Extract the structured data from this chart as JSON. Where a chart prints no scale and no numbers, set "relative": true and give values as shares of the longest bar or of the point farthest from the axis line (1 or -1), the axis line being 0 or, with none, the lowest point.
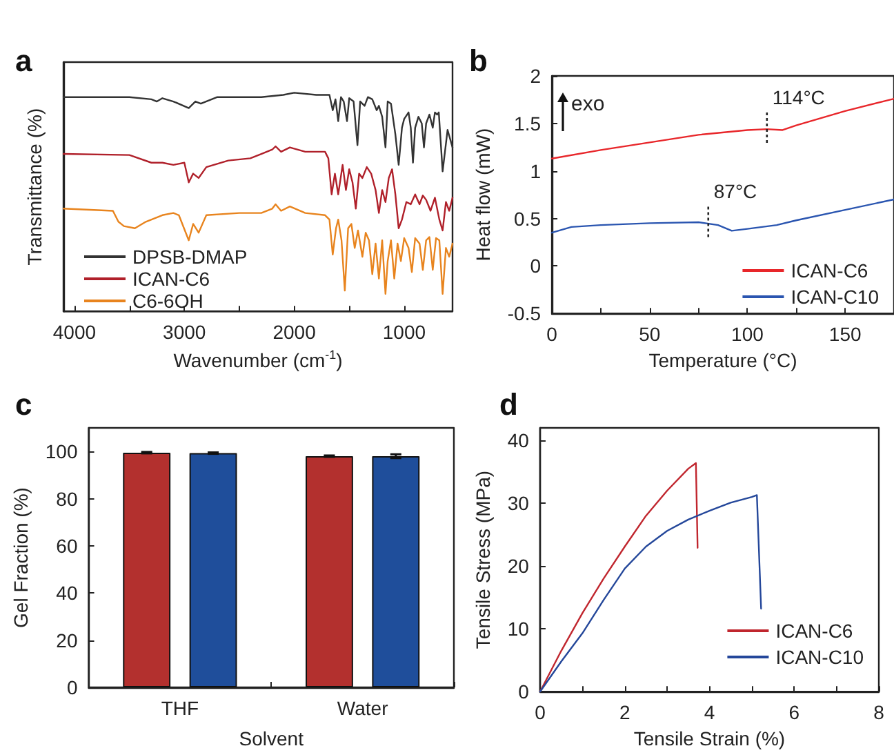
{
  "chart_data": [
    {
      "type": "line",
      "title": "a",
      "xlabel": "Wavenumber (cm$^{-1}$)",
      "ylabel": "Transmittance (%)",
      "relative": true,
      "tick_labels": "x",
      "xlim": [
        4100,
        560
      ],
      "xticks": [
        4000,
        {
          "value": 3500,
          "label": null
        },
        3000,
        {
          "value": 2500,
          "label": null
        },
        2000,
        {
          "value": 1500,
          "label": null
        },
        1000
      ],
      "legend": "bottom left",
      "series": [
        {
          "name": "DPSB-DMAP",
          "color": "#333333",
          "x": [
            4100,
            3500,
            3300,
            3250,
            3200,
            3100,
            2960,
            2900,
            2850,
            2700,
            2300,
            2100,
            2000,
            1800,
            1680,
            1650,
            1625,
            1600,
            1575,
            1550,
            1520,
            1500,
            1460,
            1425,
            1400,
            1360,
            1330,
            1290,
            1250,
            1230,
            1200,
            1170,
            1150,
            1120,
            1100,
            1080,
            1050,
            1020,
            1000,
            960,
            940,
            920,
            900,
            870,
            840,
            820,
            800,
            770,
            740,
            720,
            700,
            685,
            650,
            605,
            560
          ],
          "values": [
            0.98,
            0.98,
            0.97,
            0.96,
            0.975,
            0.96,
            0.93,
            0.96,
            0.95,
            0.98,
            0.98,
            0.99,
            1.0,
            0.99,
            0.99,
            0.92,
            0.97,
            0.87,
            0.98,
            0.96,
            0.87,
            0.975,
            0.96,
            0.76,
            0.96,
            0.94,
            0.98,
            0.97,
            0.92,
            0.94,
            0.89,
            0.75,
            0.96,
            0.95,
            0.88,
            0.81,
            0.67,
            0.84,
            0.88,
            0.91,
            0.84,
            0.68,
            0.84,
            0.89,
            0.86,
            0.75,
            0.86,
            0.9,
            0.84,
            0.91,
            0.9,
            0.91,
            0.64,
            0.83,
            0.75
          ]
        },
        {
          "name": "ICAN-C6",
          "color": "#b0202a",
          "x": [
            4100,
            3500,
            3300,
            3200,
            3100,
            3000,
            2960,
            2920,
            2870,
            2800,
            2600,
            2400,
            2300,
            2200,
            2170,
            2120,
            2040,
            1900,
            1720,
            1690,
            1660,
            1630,
            1600,
            1560,
            1530,
            1500,
            1470,
            1440,
            1410,
            1380,
            1340,
            1300,
            1260,
            1230,
            1200,
            1170,
            1140,
            1110,
            1080,
            1050,
            1020,
            980,
            940,
            900,
            860,
            830,
            800,
            760,
            720,
            680,
            650,
            620,
            590,
            560
          ],
          "values": [
            0.72,
            0.715,
            0.68,
            0.68,
            0.67,
            0.68,
            0.59,
            0.63,
            0.61,
            0.66,
            0.69,
            0.7,
            0.72,
            0.74,
            0.755,
            0.73,
            0.75,
            0.73,
            0.73,
            0.7,
            0.535,
            0.63,
            0.535,
            0.67,
            0.555,
            0.65,
            0.59,
            0.47,
            0.63,
            0.61,
            0.66,
            0.63,
            0.555,
            0.45,
            0.555,
            0.5,
            0.61,
            0.65,
            0.535,
            0.38,
            0.42,
            0.5,
            0.49,
            0.535,
            0.49,
            0.53,
            0.51,
            0.46,
            0.52,
            0.42,
            0.37,
            0.5,
            0.46,
            0.52
          ]
        },
        {
          "name": "C6-6OH",
          "color": "#e8841e",
          "x": [
            4100,
            3650,
            3600,
            3550,
            3450,
            3350,
            3200,
            3100,
            3050,
            2960,
            2920,
            2870,
            2800,
            2500,
            2300,
            2200,
            2170,
            2120,
            2040,
            1900,
            1720,
            1680,
            1650,
            1620,
            1600,
            1570,
            1540,
            1510,
            1480,
            1450,
            1420,
            1380,
            1350,
            1320,
            1290,
            1260,
            1230,
            1200,
            1170,
            1150,
            1120,
            1090,
            1060,
            1030,
            1000,
            960,
            930,
            900,
            860,
            830,
            800,
            770,
            740,
            710,
            680,
            650,
            620,
            590,
            560
          ],
          "values": [
            0.47,
            0.46,
            0.41,
            0.39,
            0.38,
            0.41,
            0.44,
            0.45,
            0.44,
            0.325,
            0.4,
            0.36,
            0.44,
            0.45,
            0.45,
            0.47,
            0.49,
            0.46,
            0.48,
            0.45,
            0.44,
            0.42,
            0.26,
            0.38,
            0.42,
            0.325,
            0.095,
            0.38,
            0.4,
            0.29,
            0.37,
            0.25,
            0.36,
            0.325,
            0.17,
            0.31,
            0.15,
            0.325,
            0.08,
            0.23,
            0.325,
            0.15,
            0.31,
            0.23,
            0.335,
            0.29,
            0.18,
            0.335,
            0.31,
            0.19,
            0.325,
            0.34,
            0.19,
            0.335,
            0.325,
            0.08,
            0.29,
            0.25,
            0.31
          ]
        }
      ]
    },
    {
      "type": "line",
      "title": "b",
      "xlabel": "Temperature (°C)",
      "ylabel": "Heat flow (mW)",
      "xlim": [
        0,
        175
      ],
      "xticks": [
        0,
        {
          "value": 25,
          "label": null
        },
        50,
        {
          "value": 75,
          "label": null
        },
        100,
        {
          "value": 125,
          "label": null
        },
        150
      ],
      "ylim": [
        -0.5,
        2
      ],
      "yticks": [
        -0.5,
        0,
        0.5,
        1,
        1.5,
        2
      ],
      "legend": "bottom right",
      "annotations": [
        "exo",
        {
          "text": "114°C",
          "x": 110,
          "y": 1.44
        },
        {
          "text": "87°C",
          "x": 80,
          "y": 0.45
        }
      ],
      "series": [
        {
          "name": "ICAN-C6",
          "color": "#e8262a",
          "x": [
            0,
            25,
            50,
            75,
            100,
            110,
            118,
            125,
            150,
            175
          ],
          "values": [
            1.13,
            1.22,
            1.3,
            1.38,
            1.43,
            1.44,
            1.43,
            1.48,
            1.63,
            1.76
          ]
        },
        {
          "name": "ICAN-C10",
          "color": "#2a55b0",
          "x": [
            0,
            10,
            25,
            50,
            75,
            85,
            92,
            100,
            115,
            125,
            150,
            175
          ],
          "values": [
            0.35,
            0.41,
            0.43,
            0.45,
            0.46,
            0.43,
            0.37,
            0.39,
            0.43,
            0.48,
            0.59,
            0.7
          ]
        }
      ]
    },
    {
      "type": "bar",
      "title": "c",
      "xlabel": "Solvent",
      "ylabel": "Gel Fraction (%)",
      "categories": [
        "THF",
        "Water"
      ],
      "ylim": [
        0,
        110
      ],
      "yticks": [
        0,
        20,
        40,
        60,
        80,
        100
      ],
      "series": [
        {
          "color": "#b3302e",
          "values": [
            99.5,
            98
          ],
          "errors": [
            0.3,
            0.3
          ]
        },
        {
          "color": "#1f4e9b",
          "values": [
            99.3,
            98
          ],
          "errors": [
            0.3,
            0.8
          ]
        }
      ]
    },
    {
      "type": "line",
      "title": "d",
      "xlabel": "Tensile Strain (%)",
      "ylabel": "Tensile Stress (MPa)",
      "xlim": [
        0,
        8
      ],
      "xticks": [
        0,
        {
          "value": 1,
          "label": null
        },
        2,
        {
          "value": 3,
          "label": null
        },
        4,
        {
          "value": 5,
          "label": null
        },
        6,
        {
          "value": 7,
          "label": null
        },
        8
      ],
      "ylim": [
        0,
        42
      ],
      "yticks": [
        0,
        10,
        20,
        30,
        40
      ],
      "legend": "bottom right",
      "series": [
        {
          "name": "ICAN-C6",
          "color": "#c0262e",
          "x": [
            0,
            0.5,
            1,
            1.5,
            2,
            2.5,
            3,
            3.5,
            3.68,
            3.72
          ],
          "values": [
            0,
            6.5,
            12.5,
            18,
            23.1,
            28,
            32,
            35.5,
            36.4,
            22.9
          ]
        },
        {
          "name": "ICAN-C10",
          "color": "#24479a",
          "x": [
            0,
            0.5,
            1,
            1.5,
            2,
            2.5,
            3,
            3.5,
            4,
            4.5,
            5,
            5.12,
            5.22
          ],
          "values": [
            0,
            4.8,
            9.3,
            14.6,
            19.6,
            23.1,
            25.6,
            27.4,
            28.8,
            30.1,
            31,
            31.3,
            13.2
          ]
        }
      ]
    }
  ]
}
